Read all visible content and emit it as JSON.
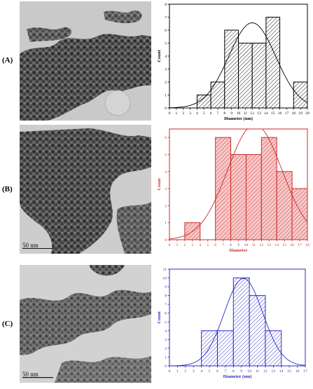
{
  "panels": [
    {
      "label": "(A)",
      "scale_text": ""
    },
    {
      "label": "(B)",
      "scale_text": "50  nm"
    },
    {
      "label": "(C)",
      "scale_text": "50  nm"
    }
  ],
  "chart_data": [
    {
      "type": "bar",
      "bin_edges": [
        4,
        6,
        8,
        10,
        12,
        14,
        16,
        18,
        20
      ],
      "values": [
        1,
        2,
        6,
        5,
        5,
        7,
        0,
        2
      ],
      "fit": "gaussian",
      "xlabel": "Diameter (nm)",
      "ylabel": "Count",
      "xlim": [
        0,
        20
      ],
      "ylim": [
        0,
        8
      ],
      "xticks": [
        "0",
        "1",
        "2",
        "3",
        "4",
        "5",
        "6",
        "7",
        "8",
        "9",
        "10",
        "11",
        "12",
        "13",
        "14",
        "15",
        "16",
        "17",
        "18",
        "19",
        "20"
      ],
      "yticks": [
        "0",
        "1",
        "2",
        "3",
        "4",
        "5",
        "6",
        "7",
        "8"
      ],
      "color": "#000000",
      "fill": "#ffffff"
    },
    {
      "type": "bar",
      "bin_edges": [
        2,
        4,
        6,
        8,
        10,
        12,
        14,
        16,
        18
      ],
      "values": [
        1,
        0,
        6,
        5,
        5,
        6,
        4,
        3
      ],
      "fit": "gaussian",
      "xlabel": "Diameter",
      "ylabel": "Count",
      "xlim": [
        0,
        18
      ],
      "ylim": [
        0,
        6.5
      ],
      "xticks": [
        "0",
        "1",
        "2",
        "3",
        "4",
        "5",
        "6",
        "7",
        "8",
        "9",
        "10",
        "11",
        "12",
        "13",
        "14",
        "15",
        "16",
        "17",
        "18"
      ],
      "yticks": [
        "0",
        "1",
        "2",
        "3",
        "4",
        "5",
        "6"
      ],
      "color": "#cc2a2a",
      "fill": "#f6caca"
    },
    {
      "type": "bar",
      "bin_edges": [
        4,
        6,
        8,
        10,
        12,
        14
      ],
      "values": [
        4,
        4,
        10,
        8,
        4
      ],
      "fit": "gaussian",
      "xlabel": "Diameter (nm)",
      "ylabel": "Count",
      "xlim": [
        0,
        17
      ],
      "ylim": [
        0,
        11
      ],
      "xticks": [
        "0",
        "1",
        "2",
        "3",
        "4",
        "5",
        "6",
        "7",
        "8",
        "9",
        "10",
        "11",
        "12",
        "13",
        "14",
        "15",
        "16",
        "17"
      ],
      "yticks": [
        "0",
        "1",
        "2",
        "3",
        "4",
        "5",
        "6",
        "7",
        "8",
        "9",
        "10",
        "11"
      ],
      "color": "#2b2bbf",
      "fill": "#ffffff"
    }
  ]
}
